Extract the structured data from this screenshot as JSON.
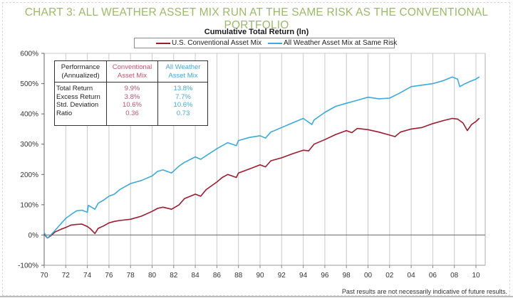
{
  "header": {
    "title": "CHART 3: ALL WEATHER ASSET MIX RUN AT THE SAME RISK AS THE CONVENTIONAL PORTFOLIO"
  },
  "footnote": "Past results are not necessarily indicative of future results.",
  "colors": {
    "title": "#9cb86b",
    "conventional": "#9b1c31",
    "all_weather": "#3fa9d6",
    "grid": "#c8c8c8",
    "axis": "#555555"
  },
  "table": {
    "header": {
      "col1": [
        "Performance",
        "(Annualized)"
      ],
      "col2": [
        "Conventional",
        "Asset Mix"
      ],
      "col3": [
        "All Weather",
        "Asset Mix"
      ]
    },
    "rows": [
      {
        "label": "Total Return",
        "conventional": "9.9%",
        "all_weather": "13.8%"
      },
      {
        "label": "Excess Return",
        "conventional": "3.8%",
        "all_weather": "7.7%"
      },
      {
        "label": "Std. Deviation",
        "conventional": "10.6%",
        "all_weather": "10.6%"
      },
      {
        "label": "Ratio",
        "conventional": "0.36",
        "all_weather": "0.73"
      }
    ]
  },
  "chart_data": {
    "type": "line",
    "title": "Cumulative Total Return (ln)",
    "xlabel": "",
    "ylabel": "",
    "xlim": [
      1970,
      2010.5
    ],
    "ylim": [
      -100,
      600
    ],
    "grid": "vertical",
    "legend": "top-center",
    "x_ticks": [
      1970,
      1972,
      1974,
      1976,
      1978,
      1980,
      1982,
      1984,
      1986,
      1988,
      1990,
      1992,
      1994,
      1996,
      1998,
      2000,
      2002,
      2004,
      2006,
      2008,
      2010
    ],
    "x_tick_labels": [
      "70",
      "72",
      "74",
      "76",
      "78",
      "80",
      "82",
      "84",
      "86",
      "88",
      "90",
      "92",
      "94",
      "96",
      "98",
      "00",
      "02",
      "04",
      "06",
      "08",
      "10"
    ],
    "y_ticks": [
      -100,
      0,
      100,
      200,
      300,
      400,
      500,
      600
    ],
    "y_tick_labels": [
      "-100%",
      "0%",
      "100%",
      "200%",
      "300%",
      "400%",
      "500%",
      "600%"
    ],
    "series": [
      {
        "name": "U.S. Conventional Asset Mix",
        "color": "#9b1c31",
        "x": [
          1970,
          1970.3,
          1970.6,
          1971,
          1971.5,
          1972,
          1972.5,
          1973,
          1973.5,
          1974,
          1974.3,
          1974.7,
          1975,
          1975.5,
          1976,
          1976.5,
          1977,
          1978,
          1979,
          1980,
          1980.5,
          1981,
          1981.8,
          1982.5,
          1983,
          1984,
          1984.5,
          1985,
          1986,
          1986.5,
          1987,
          1987.8,
          1988,
          1989,
          1990,
          1990.5,
          1991,
          1992,
          1993,
          1994,
          1994.5,
          1995,
          1996,
          1997,
          1998,
          1998.5,
          1999,
          2000,
          2001,
          2002,
          2002.5,
          2003,
          2004,
          2005,
          2006,
          2007,
          2007.8,
          2008.3,
          2008.8,
          2009.2,
          2009.6,
          2010,
          2010.3
        ],
        "y": [
          3,
          -10,
          -3,
          10,
          18,
          25,
          33,
          35,
          36,
          28,
          20,
          5,
          22,
          30,
          40,
          45,
          48,
          52,
          62,
          78,
          88,
          92,
          85,
          100,
          120,
          135,
          128,
          150,
          175,
          190,
          200,
          190,
          205,
          218,
          232,
          225,
          245,
          255,
          268,
          280,
          278,
          300,
          315,
          332,
          345,
          338,
          352,
          348,
          340,
          330,
          325,
          340,
          350,
          355,
          368,
          378,
          385,
          383,
          370,
          345,
          365,
          375,
          385
        ]
      },
      {
        "name": "All Weather Asset Mix at Same Risk",
        "color": "#3fa9d6",
        "x": [
          1970,
          1970.3,
          1970.6,
          1971,
          1971.5,
          1972,
          1972.5,
          1973,
          1973.5,
          1974,
          1974.1,
          1974.7,
          1975,
          1975.5,
          1976,
          1976.5,
          1977,
          1978,
          1979,
          1980,
          1980.5,
          1981,
          1981.8,
          1982.5,
          1983,
          1984,
          1984.5,
          1985,
          1986,
          1987,
          1987.8,
          1988,
          1989,
          1990,
          1990.5,
          1991,
          1992,
          1993,
          1994,
          1994.8,
          1995,
          1996,
          1997,
          1998,
          1999,
          2000,
          2001,
          2002,
          2003,
          2004,
          2005,
          2006,
          2007,
          2007.8,
          2008.3,
          2008.5,
          2009,
          2009.5,
          2010,
          2010.3
        ],
        "y": [
          8,
          -10,
          0,
          15,
          35,
          55,
          68,
          80,
          82,
          75,
          98,
          85,
          105,
          115,
          128,
          135,
          150,
          170,
          180,
          195,
          210,
          215,
          205,
          228,
          240,
          258,
          250,
          262,
          285,
          305,
          295,
          312,
          322,
          328,
          320,
          340,
          355,
          370,
          385,
          365,
          380,
          405,
          425,
          435,
          445,
          455,
          450,
          452,
          470,
          490,
          495,
          500,
          510,
          522,
          515,
          490,
          500,
          508,
          515,
          522
        ]
      }
    ]
  }
}
